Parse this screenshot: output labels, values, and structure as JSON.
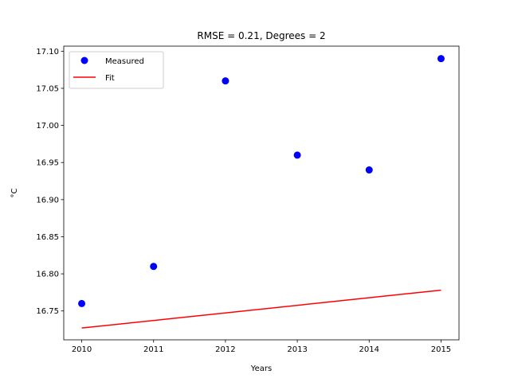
{
  "chart_data": {
    "type": "scatter",
    "title": "RMSE = 0.21, Degrees = 2",
    "xlabel": "Years",
    "ylabel": "°C",
    "xlim": [
      2009.75,
      2015.25
    ],
    "ylim": [
      16.7111,
      17.1068
    ],
    "xticks": [
      2010,
      2011,
      2012,
      2013,
      2014,
      2015
    ],
    "xtick_labels": [
      "2010",
      "2011",
      "2012",
      "2013",
      "2014",
      "2015"
    ],
    "yticks": [
      16.75,
      16.8,
      16.85,
      16.9,
      16.95,
      17.0,
      17.05,
      17.1
    ],
    "ytick_labels": [
      "16.75",
      "16.80",
      "16.85",
      "16.90",
      "16.95",
      "17.00",
      "17.05",
      "17.10"
    ],
    "grid": false,
    "legend": {
      "position": "top-left"
    },
    "series": [
      {
        "name": "Measured",
        "kind": "markers",
        "color": "#0000ff",
        "x": [
          2010,
          2011,
          2012,
          2013,
          2014,
          2015
        ],
        "y": [
          16.76,
          16.81,
          17.06,
          16.96,
          16.94,
          17.09
        ]
      },
      {
        "name": "Fit",
        "kind": "line",
        "color": "#ff0000",
        "x": [
          2010,
          2015
        ],
        "y": [
          16.727,
          16.778
        ]
      }
    ]
  }
}
